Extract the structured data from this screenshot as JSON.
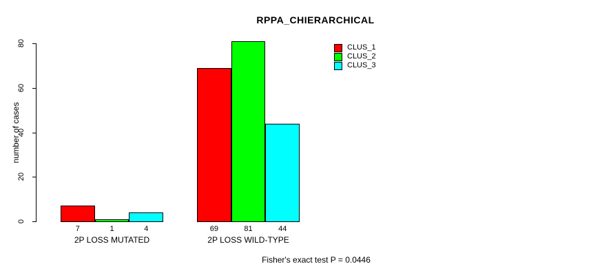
{
  "chart_data": {
    "type": "bar",
    "title": "RPPA_CHIERARCHICAL",
    "xlabel": "",
    "ylabel": "number of cases",
    "categories": [
      "2P LOSS MUTATED",
      "2P LOSS WILD-TYPE"
    ],
    "series": [
      {
        "name": "CLUS_1",
        "color": "#ff0000",
        "values": [
          7,
          69
        ]
      },
      {
        "name": "CLUS_2",
        "color": "#00ff00",
        "values": [
          1,
          81
        ]
      },
      {
        "name": "CLUS_3",
        "color": "#00ffff",
        "values": [
          4,
          44
        ]
      }
    ],
    "yticks": [
      0,
      20,
      40,
      60,
      80
    ],
    "ylim": [
      0,
      80
    ],
    "grid": false,
    "legend_position": "top-right",
    "bar_values_shown": true,
    "annotation": "Fisher's exact test P = 0.0446"
  },
  "colors": {
    "background": "#ffffff",
    "axis": "#000000",
    "text": "#000000"
  }
}
